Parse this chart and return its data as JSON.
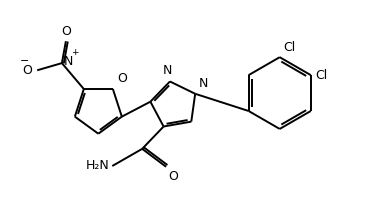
{
  "bg_color": "#ffffff",
  "line_color": "#000000",
  "lw": 1.4,
  "figsize": [
    3.92,
    2.18
  ],
  "dpi": 100,
  "xlim": [
    0.0,
    9.8
  ],
  "ylim": [
    0.5,
    5.8
  ]
}
